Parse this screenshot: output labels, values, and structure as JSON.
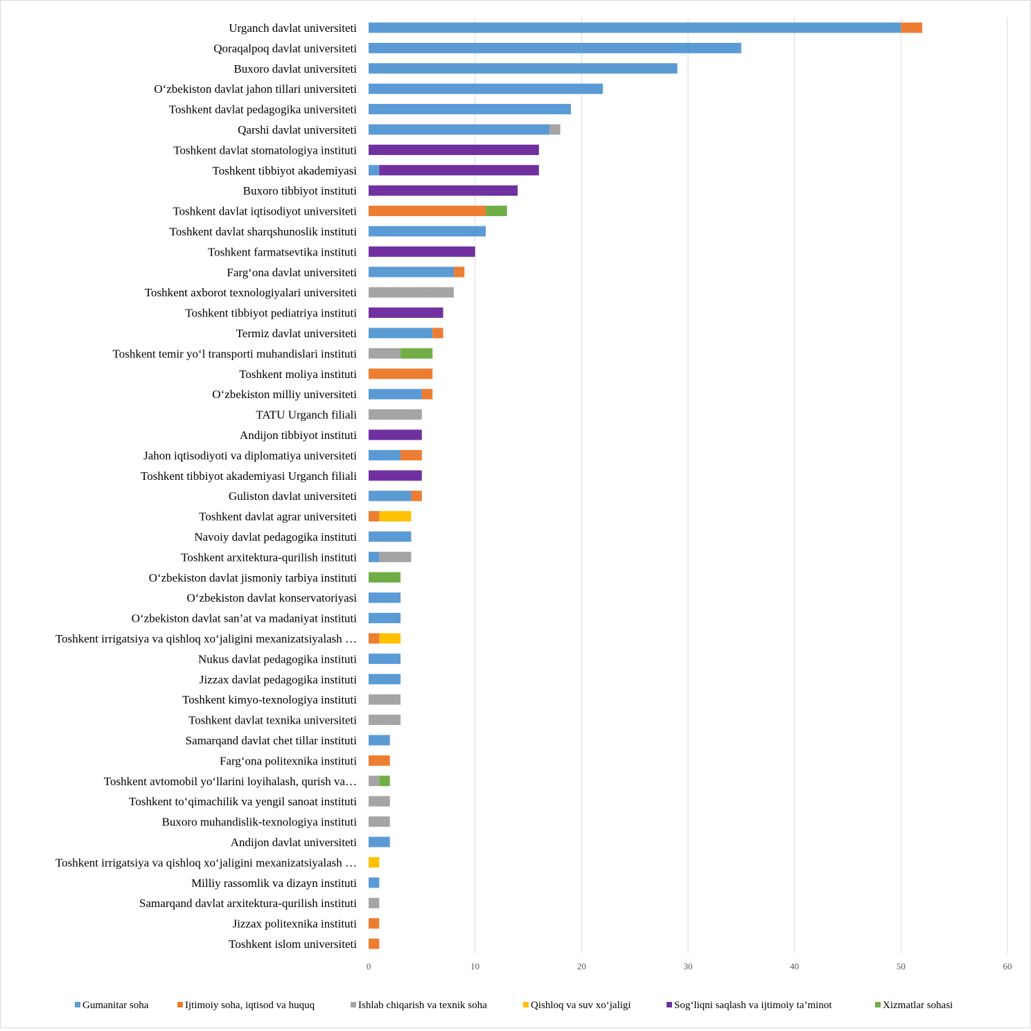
{
  "chart_data": {
    "type": "bar",
    "orientation": "horizontal",
    "stacked": true,
    "title": "",
    "xlabel": "",
    "ylabel": "",
    "xlim": [
      0,
      60
    ],
    "x_ticks": [
      "0",
      "10",
      "20",
      "30",
      "40",
      "50",
      "60"
    ],
    "grid": "vertical",
    "legend_position": "bottom",
    "categories": [
      "Urganch davlat universiteti",
      "Qoraqalpoq davlat universiteti",
      "Buxoro davlat universiteti",
      "O‘zbekiston davlat jahon tillari  universiteti",
      "Toshkent davlat pedagogika universiteti",
      "Qarshi davlat universiteti",
      "Toshkent davlat stomatologiya instituti",
      "Toshkent tibbiyot akademiyasi",
      "Buxoro tibbiyot instituti",
      "Toshkent davlat iqtisodiyot universiteti",
      "Toshkent davlat sharqshunoslik instituti",
      "Toshkent farmatsevtika instituti",
      "Farg‘ona davlat  universiteti",
      "Toshkent axborot texnologiyalari universiteti",
      "Toshkent tibbiyot pediatriya instituti",
      "Termiz davlat universiteti",
      "Toshkent temir  yo‘l transporti muhandislari  instituti",
      "Toshkent moliya instituti",
      "O‘zbekiston milliy  universiteti",
      "TATU Urganch filiali",
      "Andijon tibbiyot instituti",
      "Jahon iqtisodiyoti va diplomatiya universiteti",
      "Toshkent tibbiyot akademiyasi Urganch filiali",
      "Guliston davlat universiteti",
      "Toshkent davlat agrar universiteti",
      "Navoiy davlat pedagogika instituti",
      "Toshkent arxitektura-qurilish instituti",
      "O‘zbekiston davlat jismoniy  tarbiya instituti",
      "O‘zbekiston davlat  konservatoriyasi",
      "O‘zbekiston davlat  san’at va madaniyat instituti",
      "Toshkent irrigatsiya  va qishloq xo‘jaligini  mexanizatsiyalash …",
      "Nukus davlat pedagogika instituti",
      "Jizzax davlat pedagogika instituti",
      "Toshkent kimyo-texnologiya instituti",
      "Toshkent davlat texnika universiteti",
      "Samarqand davlat chet tillar instituti",
      "Farg‘ona politexnika  instituti",
      "Toshkent avtomobil yo‘llarini  loyihalash,  qurish va…",
      "Toshkent to‘qimachilik  va yengil  sanoat instituti",
      "Buxoro muhandislik-texnologiya instituti",
      "Andijon davlat universiteti",
      "Toshkent irrigatsiya  va qishloq xo‘jaligini  mexanizatsiyalash …",
      "Milliy rassomlik va dizayn instituti",
      "Samarqand davlat arxitektura-qurilish instituti",
      "Jizzax politexnika instituti",
      "Toshkent islom universiteti"
    ],
    "series": [
      {
        "name": "Gumanitar soha",
        "color": "#5b9bd5",
        "pattern": "solid",
        "values": [
          50,
          35,
          29,
          22,
          19,
          17,
          0,
          1,
          0,
          0,
          11,
          0,
          8,
          0,
          0,
          6,
          0,
          0,
          5,
          0,
          0,
          3,
          0,
          4,
          0,
          4,
          1,
          0,
          3,
          3,
          0,
          3,
          3,
          0,
          0,
          2,
          0,
          0,
          0,
          0,
          2,
          0,
          1,
          0,
          0,
          0
        ]
      },
      {
        "name": "Ijtimoiy soha, iqtisod va huquq",
        "color": "#ed7d31",
        "pattern": "solid",
        "values": [
          2,
          0,
          0,
          0,
          0,
          0,
          0,
          0,
          0,
          11,
          0,
          0,
          1,
          0,
          0,
          1,
          0,
          6,
          1,
          0,
          0,
          2,
          0,
          1,
          1,
          0,
          0,
          0,
          0,
          0,
          1,
          0,
          0,
          0,
          0,
          0,
          2,
          0,
          0,
          0,
          0,
          0,
          0,
          0,
          1,
          1
        ]
      },
      {
        "name": "Ishlab chiqarish va texnik soha",
        "color": "#a5a5a5",
        "pattern": "hatched",
        "values": [
          0,
          0,
          0,
          0,
          0,
          1,
          0,
          0,
          0,
          0,
          0,
          0,
          0,
          8,
          0,
          0,
          3,
          0,
          0,
          5,
          0,
          0,
          0,
          0,
          0,
          0,
          3,
          0,
          0,
          0,
          0,
          0,
          0,
          3,
          3,
          0,
          0,
          1,
          2,
          2,
          0,
          0,
          0,
          1,
          0,
          0
        ]
      },
      {
        "name": "Qishloq va suv xo‘jaligi",
        "color": "#ffc000",
        "pattern": "solid",
        "values": [
          0,
          0,
          0,
          0,
          0,
          0,
          0,
          0,
          0,
          0,
          0,
          0,
          0,
          0,
          0,
          0,
          0,
          0,
          0,
          0,
          0,
          0,
          0,
          0,
          3,
          0,
          0,
          0,
          0,
          0,
          2,
          0,
          0,
          0,
          0,
          0,
          0,
          0,
          0,
          0,
          0,
          1,
          0,
          0,
          0,
          0
        ]
      },
      {
        "name": "Sog‘liqni saqlash va ijtimoiy ta’minot",
        "color": "#7030a0",
        "pattern": "solid",
        "values": [
          0,
          0,
          0,
          0,
          0,
          0,
          16,
          15,
          14,
          0,
          0,
          10,
          0,
          0,
          7,
          0,
          0,
          0,
          0,
          0,
          5,
          0,
          5,
          0,
          0,
          0,
          0,
          0,
          0,
          0,
          0,
          0,
          0,
          0,
          0,
          0,
          0,
          0,
          0,
          0,
          0,
          0,
          0,
          0,
          0,
          0
        ]
      },
      {
        "name": "Xizmatlar sohasi",
        "color": "#70ad47",
        "pattern": "solid",
        "values": [
          0,
          0,
          0,
          0,
          0,
          0,
          0,
          0,
          0,
          2,
          0,
          0,
          0,
          0,
          0,
          0,
          3,
          0,
          0,
          0,
          0,
          0,
          0,
          0,
          0,
          0,
          0,
          3,
          0,
          0,
          0,
          0,
          0,
          0,
          0,
          0,
          0,
          1,
          0,
          0,
          0,
          0,
          0,
          0,
          0,
          0
        ]
      }
    ]
  }
}
